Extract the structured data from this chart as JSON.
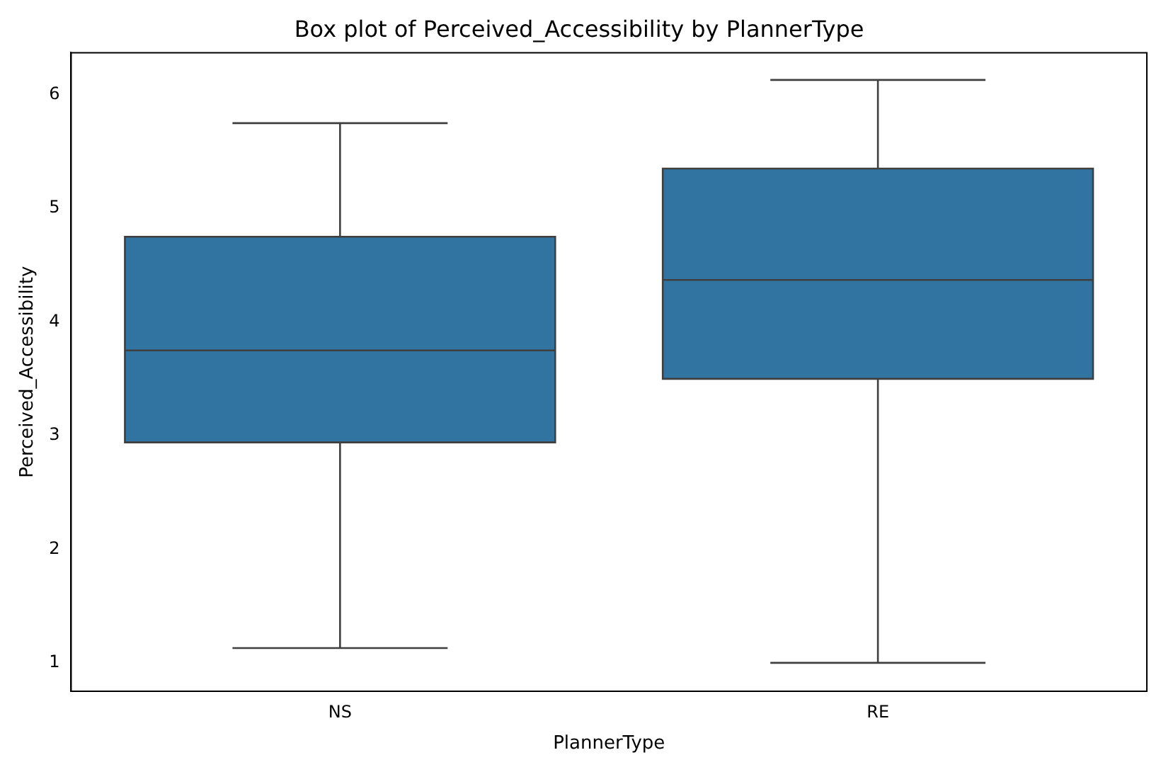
{
  "chart_data": {
    "type": "box",
    "title": "Box plot of Perceived_Accessibility by PlannerType",
    "xlabel": "PlannerType",
    "ylabel": "Perceived_Accessibility",
    "categories": [
      "NS",
      "RE"
    ],
    "boxes": [
      {
        "low": 1.13,
        "q1": 2.94,
        "median": 3.75,
        "q3": 4.75,
        "high": 5.75
      },
      {
        "low": 1.0,
        "q1": 3.5,
        "median": 4.37,
        "q3": 5.35,
        "high": 6.13
      }
    ],
    "color": "#3274a1",
    "ylim": [
      0.75,
      6.37
    ],
    "yticks": [
      1,
      2,
      3,
      4,
      5,
      6
    ],
    "grid": false
  }
}
